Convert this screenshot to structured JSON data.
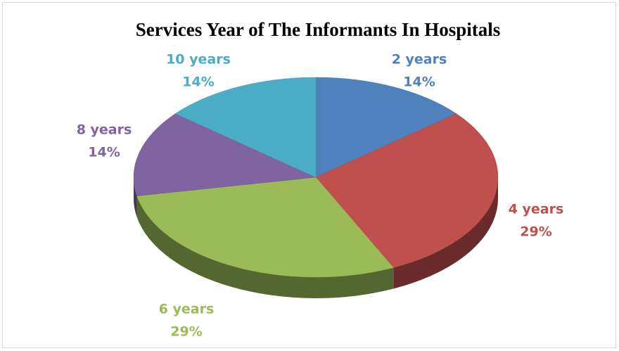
{
  "chart_data": {
    "type": "pie",
    "title": "Services Year of The Informants  In Hospitals",
    "categories": [
      "2 years",
      "4 years",
      "6 years",
      "8 years",
      "10 years"
    ],
    "values": [
      14,
      29,
      29,
      14,
      14
    ],
    "value_labels": [
      "14%",
      "29%",
      "29%",
      "14%",
      "14%"
    ],
    "colors": [
      "#4f81bd",
      "#c0504d",
      "#9bbb59",
      "#8064a2",
      "#4bacc6"
    ]
  }
}
